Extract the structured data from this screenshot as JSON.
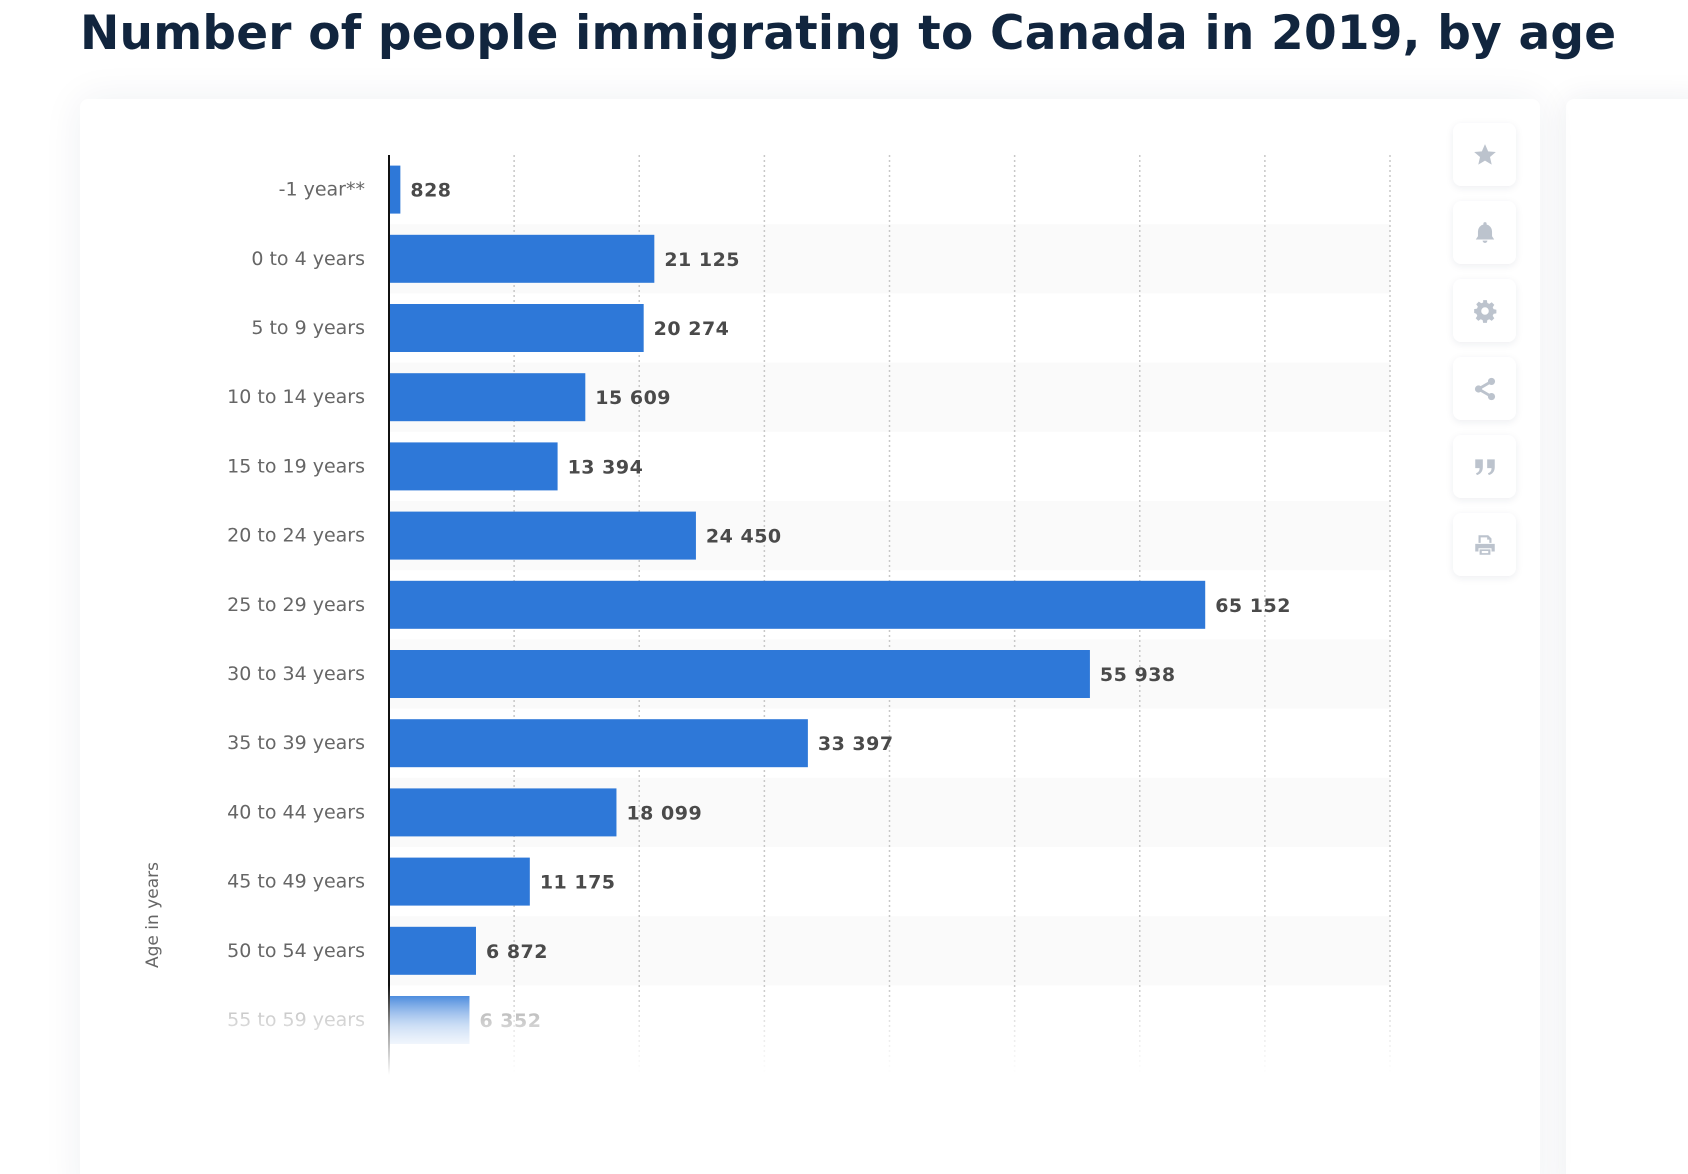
{
  "page": {
    "title": "Number of people immigrating to Canada in 2019, by age"
  },
  "toolbar": {
    "buttons": [
      {
        "icon": "star-icon",
        "label": "Add to favorites"
      },
      {
        "icon": "bell-icon",
        "label": "Notifications"
      },
      {
        "icon": "gear-icon",
        "label": "Settings"
      },
      {
        "icon": "share-icon",
        "label": "Share"
      },
      {
        "icon": "quote-icon",
        "label": "Cite"
      },
      {
        "icon": "print-icon",
        "label": "Print"
      }
    ]
  },
  "colors": {
    "bar": "#2e78d8",
    "title": "#11253e",
    "label_text": "#666666",
    "value_text": "#4a4a4a",
    "icon": "#bcc3cd",
    "band": "#fafafa",
    "grid": "#c8c8c8"
  },
  "chart_data": {
    "type": "bar",
    "orientation": "horizontal",
    "title": "Number of people immigrating to Canada in 2019, by age",
    "xlabel": "",
    "ylabel": "Age in years",
    "xlim": [
      0,
      80000
    ],
    "grid": true,
    "categories": [
      "-1 year**",
      "0 to 4 years",
      "5 to 9 years",
      "10 to 14 years",
      "15 to 19 years",
      "20 to 24 years",
      "25 to 29 years",
      "30 to 34 years",
      "35 to 39 years",
      "40 to 44 years",
      "45 to 49 years",
      "50 to 54 years",
      "55 to 59 years"
    ],
    "values": [
      828,
      21125,
      20274,
      15609,
      13394,
      24450,
      65152,
      55938,
      33397,
      18099,
      11175,
      6872,
      6352
    ],
    "value_labels": [
      "828",
      "21 125",
      "20 274",
      "15 609",
      "13 394",
      "24 450",
      "65 152",
      "55 938",
      "33 397",
      "18 099",
      "11 175",
      "6 872",
      "6 352"
    ]
  }
}
